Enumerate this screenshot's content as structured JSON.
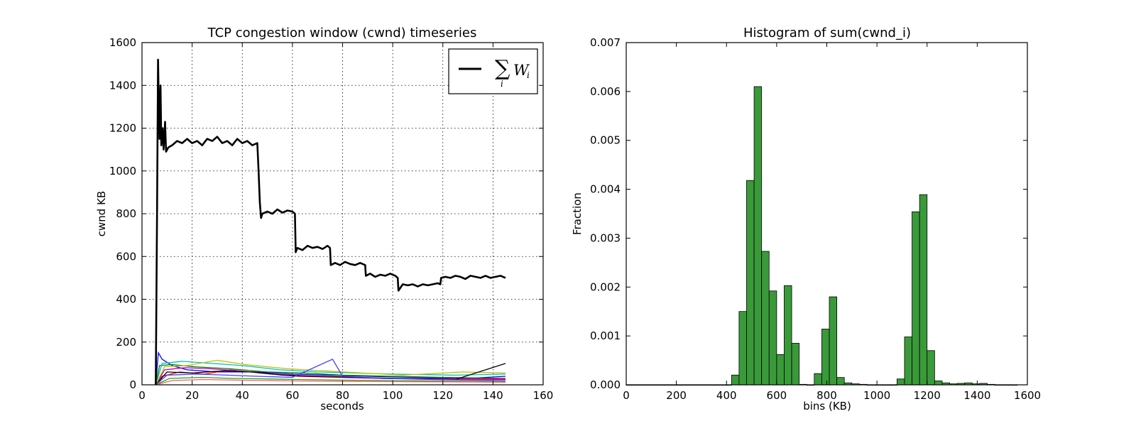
{
  "chart_data": [
    {
      "type": "line",
      "title": "TCP congestion window (cwnd) timeseries",
      "xlabel": "seconds",
      "ylabel": "cwnd KB",
      "xlim": [
        0,
        160
      ],
      "ylim": [
        0,
        1600
      ],
      "xticks": [
        "0",
        "20",
        "40",
        "60",
        "80",
        "100",
        "120",
        "140",
        "160"
      ],
      "yticks": [
        "0",
        "200",
        "400",
        "600",
        "800",
        "1000",
        "1200",
        "1400",
        "1600"
      ],
      "grid": true,
      "legend": {
        "position": "top-right",
        "entry": "Σ_i W_i",
        "sum_symbol": "∑",
        "sum_index": "i",
        "var": "W",
        "var_index": "i"
      },
      "sum_series": {
        "color": "#000000",
        "points": [
          [
            5.5,
            0
          ],
          [
            6.0,
            800
          ],
          [
            6.4,
            1520
          ],
          [
            6.7,
            1300
          ],
          [
            7.0,
            1150
          ],
          [
            7.4,
            1400
          ],
          [
            7.7,
            1120
          ],
          [
            8.2,
            1200
          ],
          [
            8.6,
            1100
          ],
          [
            9.2,
            1230
          ],
          [
            9.6,
            1090
          ],
          [
            10.5,
            1110
          ],
          [
            12,
            1120
          ],
          [
            14,
            1140
          ],
          [
            16,
            1130
          ],
          [
            18,
            1150
          ],
          [
            20,
            1130
          ],
          [
            22,
            1140
          ],
          [
            24,
            1120
          ],
          [
            26,
            1150
          ],
          [
            28,
            1140
          ],
          [
            30,
            1160
          ],
          [
            32,
            1130
          ],
          [
            34,
            1140
          ],
          [
            36,
            1120
          ],
          [
            38,
            1150
          ],
          [
            40,
            1130
          ],
          [
            42,
            1140
          ],
          [
            44,
            1120
          ],
          [
            46,
            1130
          ],
          [
            46.5,
            1000
          ],
          [
            47,
            850
          ],
          [
            47.5,
            780
          ],
          [
            48,
            800
          ],
          [
            50,
            810
          ],
          [
            52,
            800
          ],
          [
            54,
            820
          ],
          [
            56,
            805
          ],
          [
            58,
            815
          ],
          [
            60,
            810
          ],
          [
            61,
            800
          ],
          [
            61.3,
            620
          ],
          [
            62,
            640
          ],
          [
            64,
            630
          ],
          [
            66,
            650
          ],
          [
            68,
            640
          ],
          [
            70,
            645
          ],
          [
            72,
            635
          ],
          [
            74,
            650
          ],
          [
            75,
            640
          ],
          [
            75.3,
            560
          ],
          [
            77,
            570
          ],
          [
            79,
            560
          ],
          [
            81,
            575
          ],
          [
            83,
            565
          ],
          [
            85,
            560
          ],
          [
            87,
            570
          ],
          [
            89,
            560
          ],
          [
            89.3,
            510
          ],
          [
            91,
            520
          ],
          [
            93,
            505
          ],
          [
            95,
            515
          ],
          [
            97,
            510
          ],
          [
            99,
            520
          ],
          [
            101,
            510
          ],
          [
            102,
            500
          ],
          [
            102.3,
            440
          ],
          [
            104,
            470
          ],
          [
            106,
            465
          ],
          [
            108,
            470
          ],
          [
            110,
            460
          ],
          [
            112,
            470
          ],
          [
            114,
            465
          ],
          [
            116,
            470
          ],
          [
            118,
            475
          ],
          [
            119,
            470
          ],
          [
            119.3,
            500
          ],
          [
            121,
            505
          ],
          [
            123,
            500
          ],
          [
            125,
            510
          ],
          [
            127,
            505
          ],
          [
            129,
            495
          ],
          [
            131,
            510
          ],
          [
            133,
            505
          ],
          [
            135,
            500
          ],
          [
            137,
            510
          ],
          [
            139,
            500
          ],
          [
            141,
            505
          ],
          [
            143,
            510
          ],
          [
            145,
            500
          ]
        ]
      },
      "flow_series": [
        {
          "color": "#0000ff",
          "points": [
            [
              5.5,
              0
            ],
            [
              6.5,
              150
            ],
            [
              8,
              120
            ],
            [
              12,
              90
            ],
            [
              18,
              70
            ],
            [
              30,
              60
            ],
            [
              45,
              60
            ],
            [
              60,
              50
            ],
            [
              75,
              45
            ],
            [
              90,
              40
            ],
            [
              110,
              35
            ],
            [
              130,
              30
            ],
            [
              145,
              40
            ]
          ]
        },
        {
          "color": "#008000",
          "points": [
            [
              5.5,
              0
            ],
            [
              7,
              90
            ],
            [
              12,
              95
            ],
            [
              20,
              85
            ],
            [
              35,
              75
            ],
            [
              50,
              60
            ],
            [
              65,
              55
            ],
            [
              80,
              45
            ],
            [
              100,
              40
            ],
            [
              120,
              35
            ],
            [
              145,
              30
            ]
          ]
        },
        {
          "color": "#ff0000",
          "points": [
            [
              5.5,
              0
            ],
            [
              8,
              40
            ],
            [
              15,
              60
            ],
            [
              25,
              50
            ],
            [
              35,
              70
            ],
            [
              47,
              55
            ],
            [
              62,
              40
            ],
            [
              78,
              35
            ],
            [
              95,
              30
            ],
            [
              115,
              28
            ],
            [
              145,
              25
            ]
          ]
        },
        {
          "color": "#00bfbf",
          "points": [
            [
              5.5,
              0
            ],
            [
              8,
              100
            ],
            [
              16,
              110
            ],
            [
              28,
              100
            ],
            [
              40,
              90
            ],
            [
              55,
              70
            ],
            [
              70,
              60
            ],
            [
              85,
              55
            ],
            [
              100,
              50
            ],
            [
              125,
              45
            ],
            [
              145,
              50
            ]
          ]
        },
        {
          "color": "#bf00bf",
          "points": [
            [
              5.5,
              0
            ],
            [
              9,
              70
            ],
            [
              17,
              80
            ],
            [
              27,
              75
            ],
            [
              39,
              65
            ],
            [
              52,
              50
            ],
            [
              68,
              40
            ],
            [
              83,
              35
            ],
            [
              99,
              30
            ],
            [
              118,
              30
            ],
            [
              145,
              28
            ]
          ]
        },
        {
          "color": "#bfbf00",
          "points": [
            [
              5.5,
              0
            ],
            [
              9,
              85
            ],
            [
              18,
              90
            ],
            [
              30,
              115
            ],
            [
              41,
              95
            ],
            [
              58,
              75
            ],
            [
              73,
              65
            ],
            [
              88,
              55
            ],
            [
              104,
              45
            ],
            [
              128,
              60
            ],
            [
              145,
              55
            ]
          ]
        },
        {
          "color": "#000000",
          "points": [
            [
              5.5,
              0
            ],
            [
              10,
              60
            ],
            [
              20,
              55
            ],
            [
              32,
              65
            ],
            [
              44,
              60
            ],
            [
              56,
              45
            ],
            [
              72,
              40
            ],
            [
              86,
              35
            ],
            [
              102,
              30
            ],
            [
              125,
              25
            ],
            [
              145,
              100
            ]
          ]
        },
        {
          "color": "#4040ff",
          "points": [
            [
              5.5,
              0
            ],
            [
              10,
              45
            ],
            [
              22,
              50
            ],
            [
              34,
              45
            ],
            [
              46,
              40
            ],
            [
              60,
              35
            ],
            [
              76,
              120
            ],
            [
              80,
              40
            ],
            [
              96,
              30
            ],
            [
              116,
              25
            ],
            [
              145,
              20
            ]
          ]
        },
        {
          "color": "#20a020",
          "points": [
            [
              5.5,
              0
            ],
            [
              11,
              30
            ],
            [
              24,
              35
            ],
            [
              36,
              30
            ],
            [
              48,
              28
            ],
            [
              62,
              25
            ],
            [
              80,
              22
            ],
            [
              98,
              20
            ],
            [
              120,
              18
            ],
            [
              145,
              15
            ]
          ]
        },
        {
          "color": "#ff6060",
          "points": [
            [
              5.5,
              0
            ],
            [
              12,
              20
            ],
            [
              24,
              25
            ],
            [
              38,
              22
            ],
            [
              50,
              20
            ],
            [
              64,
              18
            ],
            [
              82,
              16
            ],
            [
              100,
              15
            ],
            [
              122,
              14
            ],
            [
              145,
              12
            ]
          ]
        }
      ]
    },
    {
      "type": "bar",
      "title": "Histogram of sum(cwnd_i)",
      "xlabel": "bins (KB)",
      "ylabel": "Fraction",
      "xlim": [
        0,
        1600
      ],
      "ylim": [
        0,
        0.007
      ],
      "xticks": [
        "0",
        "200",
        "400",
        "600",
        "800",
        "1000",
        "1200",
        "1400",
        "1600"
      ],
      "yticks": [
        "0.000",
        "0.001",
        "0.002",
        "0.003",
        "0.004",
        "0.005",
        "0.006",
        "0.007"
      ],
      "grid": false,
      "color": "#3a9a3a",
      "bin_start": 0,
      "bin_width": 30,
      "values": [
        0,
        0,
        0,
        0,
        0,
        0,
        0,
        0,
        0,
        0,
        0,
        0,
        0,
        0,
        0.0002,
        0.0015,
        0.00418,
        0.0061,
        0.00273,
        0.00192,
        0.00062,
        0.00203,
        0.00085,
        1e-05,
        0,
        0.00023,
        0.00114,
        0.0018,
        0.00015,
        4e-05,
        2e-05,
        1e-05,
        0,
        0,
        0,
        0,
        0.00012,
        0.00098,
        0.00354,
        0.00389,
        0.0007,
        8e-05,
        4e-05,
        2e-05,
        3e-05,
        4e-05,
        2e-05,
        3e-05,
        1e-05,
        0,
        0,
        0
      ]
    }
  ]
}
